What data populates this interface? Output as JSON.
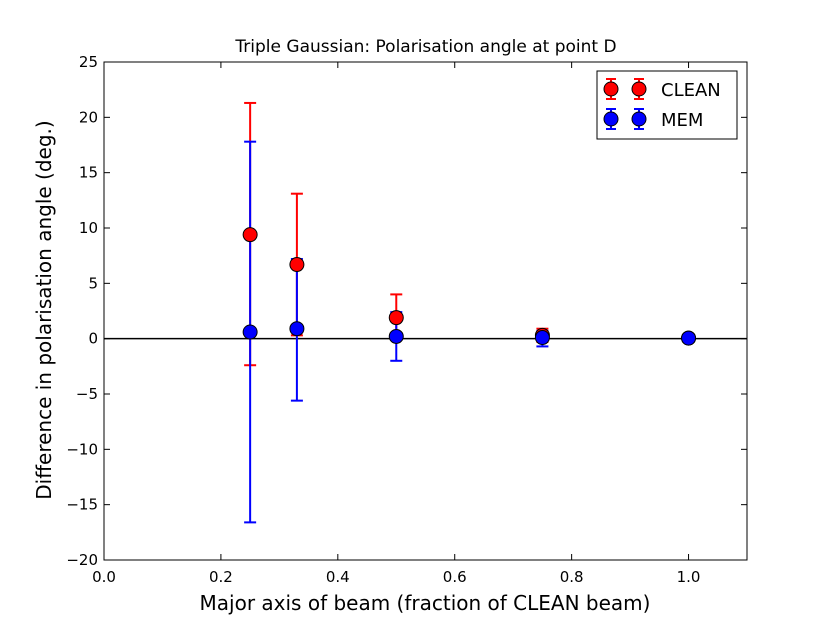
{
  "chart_data": {
    "type": "scatter",
    "title": "Triple Gaussian: Polarisation angle at point D",
    "xlabel": "Major axis of beam (fraction of CLEAN beam)",
    "ylabel": "Difference in polarisation angle (deg.)",
    "xlim": [
      0.0,
      1.1
    ],
    "ylim": [
      -20,
      25
    ],
    "x_ticks": [
      "0.0",
      "0.2",
      "0.4",
      "0.6",
      "0.8",
      "1.0"
    ],
    "y_ticks": [
      "−20",
      "−15",
      "−10",
      "−5",
      "0",
      "5",
      "10",
      "15",
      "20",
      "25"
    ],
    "grid": false,
    "legend_position": "top-right",
    "reference_line_y": 0,
    "series": [
      {
        "name": "CLEAN",
        "color": "#ff0000",
        "points": [
          {
            "x": 0.25,
            "y": 9.4,
            "err_low": -2.4,
            "err_high": 21.3
          },
          {
            "x": 0.33,
            "y": 6.7,
            "err_low": 0.3,
            "err_high": 13.1
          },
          {
            "x": 0.5,
            "y": 1.9,
            "err_low": 0.3,
            "err_high": 4.0
          },
          {
            "x": 0.75,
            "y": 0.3,
            "err_low": -0.3,
            "err_high": 0.9
          },
          {
            "x": 1.0,
            "y": 0.05,
            "err_low": 0.05,
            "err_high": 0.05
          }
        ]
      },
      {
        "name": "MEM",
        "color": "#0000ff",
        "points": [
          {
            "x": 0.25,
            "y": 0.6,
            "err_low": -16.6,
            "err_high": 17.8
          },
          {
            "x": 0.33,
            "y": 0.9,
            "err_low": -5.6,
            "err_high": 7.2
          },
          {
            "x": 0.5,
            "y": 0.2,
            "err_low": -2.0,
            "err_high": 2.4
          },
          {
            "x": 0.75,
            "y": 0.1,
            "err_low": -0.7,
            "err_high": 0.7
          },
          {
            "x": 1.0,
            "y": 0.05,
            "err_low": 0.05,
            "err_high": 0.05
          }
        ]
      }
    ]
  }
}
